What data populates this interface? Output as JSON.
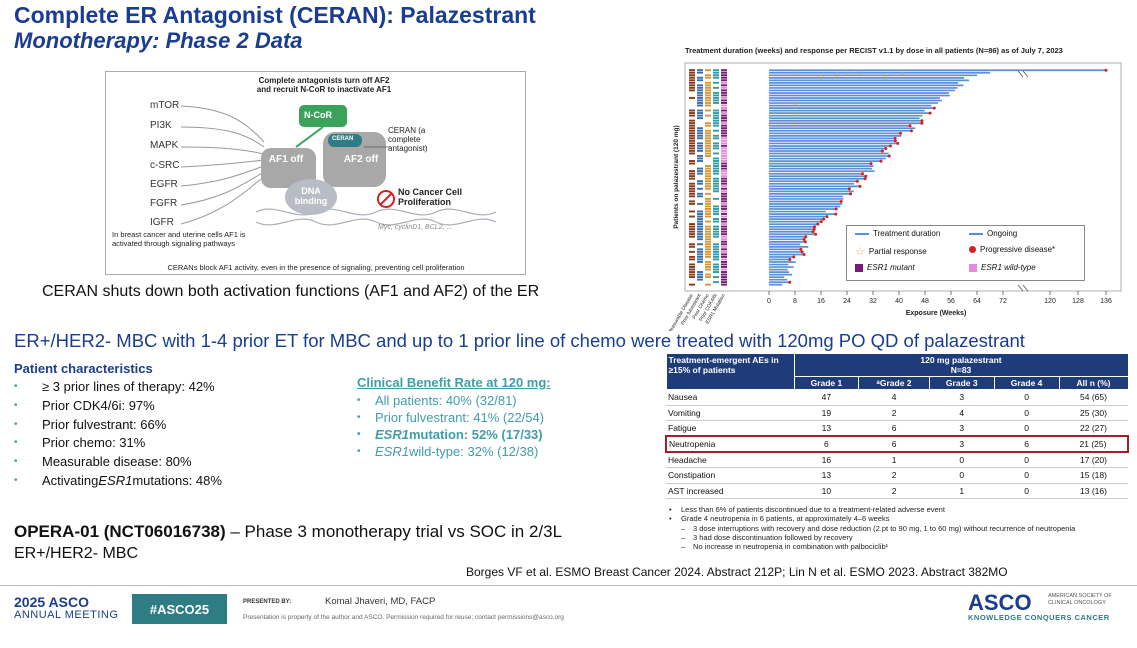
{
  "title": {
    "line1": "Complete ER Antagonist (CERAN): Palazestrant",
    "line2": "Monotherapy: Phase 2 Data"
  },
  "diagram": {
    "top_text": "Complete antagonists turn off AF2 and recruit N-CoR to inactivate AF1",
    "signals": [
      "mTOR",
      "PI3K",
      "MAPK",
      "c-SRC",
      "EGFR",
      "FGFR",
      "IGFR"
    ],
    "ncor": "N-CoR",
    "ceran_chip": "CERAN",
    "ceran_note": "CERAN (a complete antagonist)",
    "af1": "AF1 off",
    "af2": "AF2 off",
    "dna": "DNA binding",
    "no_prolif": "No Cancer Cell Proliferation",
    "genes": "Myc, cyclinD1, BCL2, ...",
    "note": "In breast cancer and uterine cells AF1 is activated through signaling pathways",
    "bottom": "CERANs block AF1 activity, even in the presence of signaling, preventing cell proliferation",
    "colors": {
      "green": "#3aa35b",
      "gray": "#9a9a9a",
      "teal": "#2e7d85"
    }
  },
  "caption": "CERAN shuts down both activation functions (AF1 and AF2) of the ER",
  "swimmer": {
    "title": "Treatment duration (weeks) and response per RECIST v1.1 by dose in all patients (N=86) as of July 7, 2023",
    "ylabel": "Patients on palazestrant (120 mg)",
    "xlabel": "Exposure (Weeks)",
    "xticks": [
      "0",
      "8",
      "16",
      "24",
      "32",
      "40",
      "48",
      "56",
      "64",
      "72",
      "120",
      "128",
      "136"
    ],
    "col_labels": [
      "Measurable Disease",
      "Prior fulvestrant",
      "Prior Chemo",
      "Prior CDK4/6i",
      "ESR1 Mutation"
    ],
    "legend": {
      "duration": "Treatment duration",
      "ongoing": "Ongoing",
      "pr": "Partial response",
      "pd": "Progressive disease*",
      "mut": "ESR1 mutant",
      "wt": "ESR1 wild-type"
    },
    "colors": {
      "bar": "#5b8fd6",
      "pd": "#d42020",
      "pr": "#c8b84a",
      "mut": "#7a1a7a",
      "wt": "#e58ad6"
    }
  },
  "mid_text": "ER+/HER2- MBC with 1-4 prior ET for MBC and up to 1 prior line of chemo were treated with 120mg PO QD of palazestrant",
  "patient_characteristics": {
    "title": "Patient characteristics",
    "items": [
      "≥ 3 prior lines of therapy: 42%",
      "Prior CDK4/6i: 97%",
      "Prior fulvestrant: 66%",
      "Prior chemo: 31%",
      "Measurable disease: 80%"
    ],
    "last_item": {
      "pre": "Activating ",
      "italic": "ESR1",
      "post": " mutations: 48%"
    }
  },
  "cbr": {
    "title": "Clinical Benefit Rate at 120 mg:",
    "item1": "All patients: 40% (32/81)",
    "item2": "Prior fulvestrant: 41% (22/54)",
    "item3": {
      "italic": "ESR1",
      "post": " mutation: 52% (17/33)"
    },
    "item4": {
      "italic": "ESR1",
      "post": " wild-type: 32% (12/38)"
    }
  },
  "ae_table": {
    "header_left": "Treatment-emergent AEs in ≥15% of patients",
    "header_group": "120 mg palazestrant",
    "header_n": "N=83",
    "grades": [
      "Grade 1",
      "ᵃGrade 2",
      "Grade 3",
      "Grade 4",
      "All n (%)"
    ],
    "rows": [
      {
        "name": "Nausea",
        "g1": "47",
        "g2": "4",
        "g3": "3",
        "g4": "0",
        "all": "54 (65)"
      },
      {
        "name": "Vomiting",
        "g1": "19",
        "g2": "2",
        "g3": "4",
        "g4": "0",
        "all": "25 (30)"
      },
      {
        "name": "Fatigue",
        "g1": "13",
        "g2": "6",
        "g3": "3",
        "g4": "0",
        "all": "22 (27)"
      },
      {
        "name": "Neutropenia",
        "g1": "6",
        "g2": "6",
        "g3": "3",
        "g4": "6",
        "all": "21 (25)"
      },
      {
        "name": "Headache",
        "g1": "16",
        "g2": "1",
        "g3": "0",
        "g4": "0",
        "all": "17 (20)"
      },
      {
        "name": "Constipation",
        "g1": "13",
        "g2": "2",
        "g3": "0",
        "g4": "0",
        "all": "15 (18)"
      },
      {
        "name": "AST increased",
        "g1": "10",
        "g2": "2",
        "g3": "1",
        "g4": "0",
        "all": "13 (16)"
      }
    ],
    "highlight_color": "#a3202b"
  },
  "notes": {
    "n1": "Less than 6% of patients discontinued due to a treatment-related adverse event",
    "n2": "Grade 4 neutropenia in 6 patients, at approximately 4–6 weeks",
    "s1": "3 dose interruptions with recovery and dose reduction (2 pt to 90 mg, 1 to 60 mg) without recurrence of neutropenia",
    "s2": "3 had dose discontinuation followed by recovery",
    "s3": "No increase in neutropenia in combination with palbociclib¹"
  },
  "opera": {
    "bold": "OPERA-01 (NCT06016738)",
    "rest": " – Phase 3 monotherapy trial vs SOC in 2/3L",
    "line2": "ER+/HER2- MBC"
  },
  "reference": "Borges VF et al. ESMO Breast Cancer 2024. Abstract 212P; Lin N et al. ESMO 2023. Abstract 382MO",
  "footer": {
    "year": "2025 ASCO",
    "meeting": "ANNUAL MEETING",
    "hashtag": "#ASCO25",
    "presented_by": "PRESENTED BY:",
    "presenter": "Komal Jhaveri, MD, FACP",
    "disclaimer": "Presentation is property of the author and ASCO. Permission required for reuse; contact permissions@asco.org",
    "asco": "ASCO",
    "society": "AMERICAN SOCIETY OF CLINICAL ONCOLOGY",
    "tagline": "KNOWLEDGE CONQUERS CANCER"
  },
  "colors": {
    "navy": "#1a3d8f",
    "teal": "#3f9ea8",
    "table_header": "#1f3c7a"
  }
}
